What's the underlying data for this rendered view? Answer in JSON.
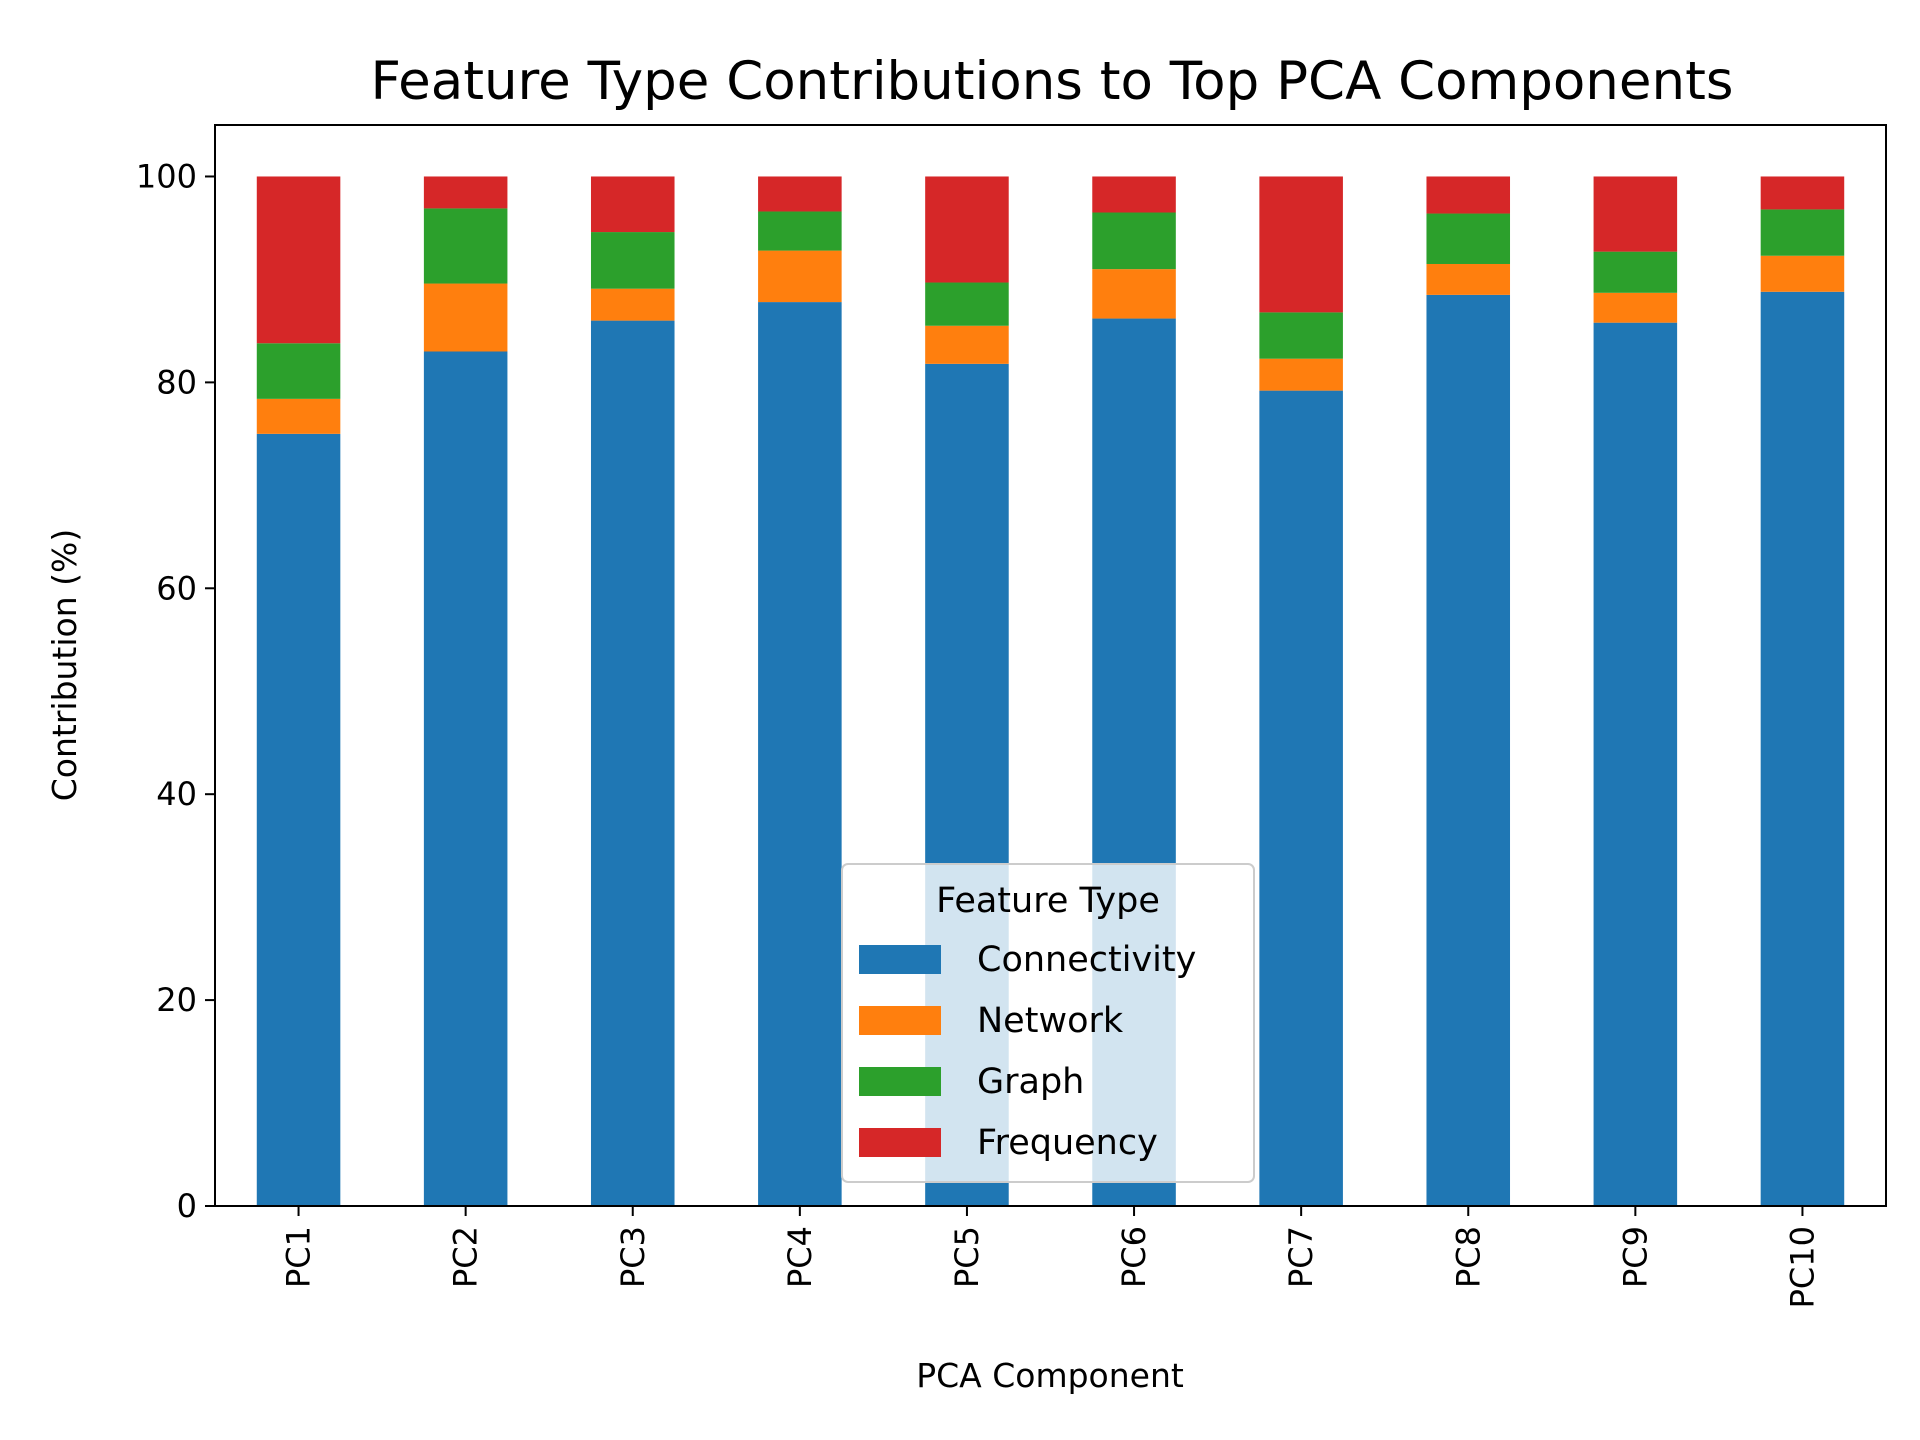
{
  "chart_data": {
    "type": "bar",
    "stacked": true,
    "title": "Feature Type Contributions to Top PCA Components",
    "xlabel": "PCA Component",
    "ylabel": "Contribution (%)",
    "ylim": [
      0,
      105
    ],
    "yticks": [
      0,
      20,
      40,
      60,
      80,
      100
    ],
    "categories": [
      "PC1",
      "PC2",
      "PC3",
      "PC4",
      "PC5",
      "PC6",
      "PC7",
      "PC8",
      "PC9",
      "PC10"
    ],
    "series": [
      {
        "name": "Connectivity",
        "color": "#1f77b4",
        "values": [
          75.0,
          83.0,
          86.0,
          87.8,
          81.8,
          86.2,
          79.2,
          88.5,
          85.8,
          88.8
        ]
      },
      {
        "name": "Network",
        "color": "#ff7f0e",
        "values": [
          3.4,
          6.6,
          3.1,
          5.0,
          3.7,
          4.8,
          3.1,
          3.0,
          2.9,
          3.5
        ]
      },
      {
        "name": "Graph",
        "color": "#2ca02c",
        "values": [
          5.4,
          7.3,
          5.5,
          3.8,
          4.2,
          5.5,
          4.5,
          4.9,
          4.0,
          4.5
        ]
      },
      {
        "name": "Frequency",
        "color": "#d62728",
        "values": [
          16.2,
          3.1,
          5.4,
          3.4,
          10.3,
          3.5,
          13.2,
          3.6,
          7.3,
          3.2
        ]
      }
    ],
    "legend": {
      "title": "Feature Type",
      "placement": "lower center"
    },
    "grid": false
  }
}
